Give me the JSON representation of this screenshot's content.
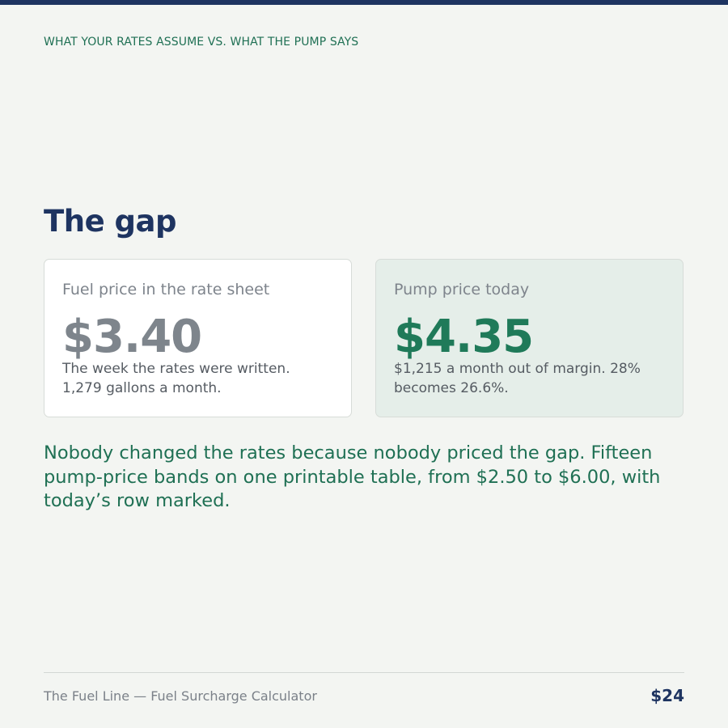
{
  "eyebrow": "WHAT YOUR RATES ASSUME VS. WHAT THE PUMP SAYS",
  "heading": "The gap",
  "cards": {
    "rate_sheet": {
      "label": "Fuel price in the rate sheet",
      "value": "$3.40",
      "note": "The week the rates were written. 1,279 gallons a month."
    },
    "pump": {
      "label": "Pump price today",
      "value": "$4.35",
      "note": "$1,215 a month out of margin. 28% becomes 26.6%."
    }
  },
  "callout": "Nobody changed the rates because nobody priced the gap. Fifteen pump-price bands on one printable table, from $2.50 to $6.00, with today’s row marked.",
  "footer": {
    "title": "The Fuel Line — Fuel Surcharge Calculator",
    "price": "$24"
  },
  "colors": {
    "navy": "#1e3461",
    "green": "#1f7a59",
    "background": "#f3f5f2",
    "highlight_card": "#e5eee9"
  }
}
